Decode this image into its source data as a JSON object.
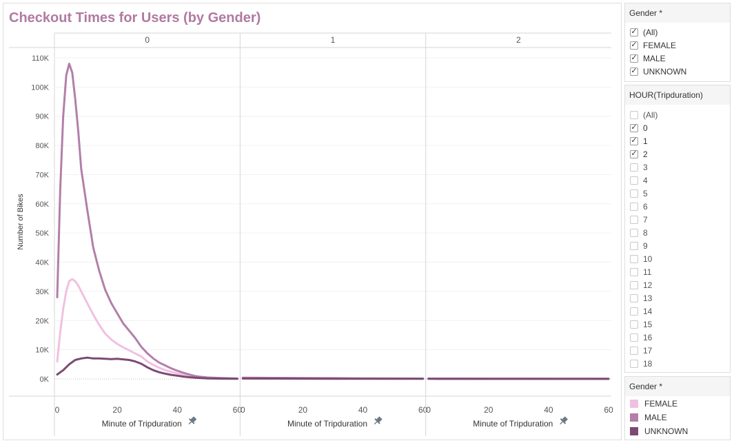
{
  "title": "Checkout Times for Users (by Gender)",
  "chart_data": {
    "type": "line",
    "title": "Checkout Times for Users (by Gender)",
    "ylabel": "Number of Bikes",
    "xlabel": "Minute of Tripduration",
    "ylim": [
      0,
      115000
    ],
    "y_ticks": [
      0,
      10000,
      20000,
      30000,
      40000,
      50000,
      60000,
      70000,
      80000,
      90000,
      100000,
      110000
    ],
    "y_tick_labels": [
      "0K",
      "10K",
      "20K",
      "30K",
      "40K",
      "50K",
      "60K",
      "70K",
      "80K",
      "90K",
      "100K",
      "110K"
    ],
    "x_range": [
      0,
      60
    ],
    "x_ticks": [
      0,
      20,
      40,
      60
    ],
    "x_tick_labels": [
      "0",
      "20",
      "40",
      "60"
    ],
    "panels": [
      {
        "label": "0"
      },
      {
        "label": "1"
      },
      {
        "label": "2"
      }
    ],
    "series": [
      {
        "name": "FEMALE",
        "color": "#f1c0e1",
        "panels": [
          {
            "x": [
              0,
              1,
              2,
              3,
              4,
              5,
              6,
              7,
              8,
              10,
              12,
              14,
              16,
              18,
              20,
              22,
              24,
              26,
              28,
              30,
              32,
              34,
              36,
              38,
              40,
              42,
              44,
              46,
              48,
              50,
              55,
              60
            ],
            "y": [
              6000,
              16000,
              24000,
              30000,
              33500,
              34200,
              33500,
              32000,
              30000,
              26000,
              22000,
              18500,
              15500,
              13500,
              12000,
              10800,
              9800,
              8700,
              7700,
              6000,
              4800,
              3800,
              3000,
              2400,
              1900,
              1400,
              1000,
              700,
              500,
              400,
              200,
              100
            ]
          },
          {
            "x": [
              0,
              10,
              20,
              30,
              40,
              50,
              60
            ],
            "y": [
              300,
              250,
              200,
              150,
              120,
              100,
              80
            ]
          },
          {
            "x": [
              0,
              10,
              20,
              30,
              40,
              50,
              60
            ],
            "y": [
              80,
              70,
              60,
              50,
              40,
              40,
              30
            ]
          }
        ]
      },
      {
        "name": "MALE",
        "color": "#b27fa8",
        "panels": [
          {
            "x": [
              0,
              1,
              2,
              3,
              4,
              5,
              6,
              7,
              8,
              10,
              12,
              14,
              16,
              18,
              20,
              22,
              24,
              26,
              28,
              30,
              32,
              34,
              36,
              38,
              40,
              42,
              44,
              46,
              48,
              50,
              55,
              60
            ],
            "y": [
              28000,
              65000,
              90000,
              104000,
              108000,
              105000,
              96000,
              85000,
              72000,
              58000,
              45000,
              37000,
              30500,
              26000,
              22500,
              19000,
              16500,
              14000,
              11000,
              8800,
              7000,
              5600,
              4600,
              3600,
              2800,
              2100,
              1500,
              1000,
              700,
              500,
              300,
              150
            ]
          },
          {
            "x": [
              0,
              10,
              20,
              30,
              40,
              50,
              60
            ],
            "y": [
              400,
              350,
              300,
              250,
              200,
              150,
              120
            ]
          },
          {
            "x": [
              0,
              10,
              20,
              30,
              40,
              50,
              60
            ],
            "y": [
              120,
              110,
              100,
              90,
              80,
              70,
              60
            ]
          }
        ]
      },
      {
        "name": "UNKNOWN",
        "color": "#7a4a73",
        "panels": [
          {
            "x": [
              0,
              2,
              4,
              6,
              8,
              10,
              12,
              14,
              16,
              18,
              20,
              22,
              24,
              26,
              28,
              30,
              32,
              34,
              36,
              38,
              40,
              42,
              44,
              46,
              48,
              50,
              55,
              60
            ],
            "y": [
              1500,
              3000,
              5000,
              6500,
              7000,
              7300,
              7000,
              7000,
              6900,
              6800,
              6900,
              6700,
              6500,
              6000,
              5200,
              4000,
              3000,
              2300,
              1800,
              1400,
              1100,
              800,
              600,
              400,
              300,
              200,
              100,
              50
            ]
          },
          {
            "x": [
              0,
              10,
              20,
              30,
              40,
              50,
              60
            ],
            "y": [
              150,
              120,
              100,
              80,
              60,
              50,
              40
            ]
          },
          {
            "x": [
              0,
              10,
              20,
              30,
              40,
              50,
              60
            ],
            "y": [
              40,
              35,
              30,
              25,
              20,
              20,
              15
            ]
          }
        ]
      }
    ]
  },
  "filters": {
    "gender": {
      "title": "Gender *",
      "items": [
        {
          "label": "(All)",
          "checked": true
        },
        {
          "label": "FEMALE",
          "checked": true
        },
        {
          "label": "MALE",
          "checked": true
        },
        {
          "label": "UNKNOWN",
          "checked": true
        }
      ]
    },
    "hour": {
      "title": "HOUR(Tripduration)",
      "items": [
        {
          "label": "(All)",
          "checked": false
        },
        {
          "label": "0",
          "checked": true
        },
        {
          "label": "1",
          "checked": true
        },
        {
          "label": "2",
          "checked": true
        },
        {
          "label": "3",
          "checked": false
        },
        {
          "label": "4",
          "checked": false
        },
        {
          "label": "5",
          "checked": false
        },
        {
          "label": "6",
          "checked": false
        },
        {
          "label": "7",
          "checked": false
        },
        {
          "label": "8",
          "checked": false
        },
        {
          "label": "9",
          "checked": false
        },
        {
          "label": "10",
          "checked": false
        },
        {
          "label": "11",
          "checked": false
        },
        {
          "label": "12",
          "checked": false
        },
        {
          "label": "13",
          "checked": false
        },
        {
          "label": "14",
          "checked": false
        },
        {
          "label": "15",
          "checked": false
        },
        {
          "label": "16",
          "checked": false
        },
        {
          "label": "17",
          "checked": false
        },
        {
          "label": "18",
          "checked": false
        }
      ]
    }
  },
  "legend": {
    "title": "Gender *",
    "items": [
      {
        "label": "FEMALE",
        "color": "#f1c0e1"
      },
      {
        "label": "MALE",
        "color": "#b27fa8"
      },
      {
        "label": "UNKNOWN",
        "color": "#7a4a73"
      }
    ]
  },
  "icons": {
    "pin": "pin-icon",
    "check": "check-icon"
  }
}
